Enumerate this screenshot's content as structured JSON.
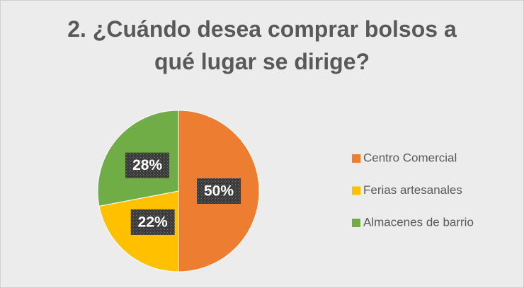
{
  "chart_data": {
    "type": "pie",
    "title": "2. ¿Cuándo desea comprar bolsos a qué lugar se dirige?",
    "categories": [
      "Centro Comercial",
      "Ferias artesanales",
      "Almacenes de barrio"
    ],
    "values": [
      50,
      22,
      28
    ],
    "value_labels": [
      "50%",
      "22%",
      "28%"
    ],
    "colors": [
      "#ed7d31",
      "#ffc000",
      "#70ad47"
    ],
    "legend": "right"
  }
}
